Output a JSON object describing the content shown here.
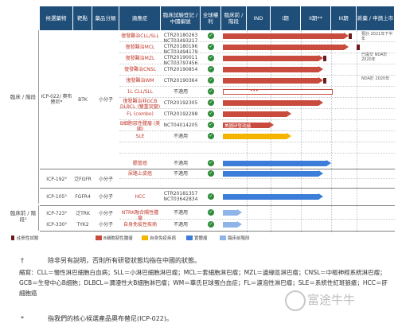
{
  "header": {
    "col_candidate": "候選藥物",
    "col_target": "靶點",
    "col_drug_class": "藥品分類",
    "col_indication": "適應症",
    "col_trial_no": "臨床試驗登記 / 中國編號",
    "col_global_rights": "全球權利",
    "col_preclinical": "臨床前 / 階段",
    "col_ind": "IND",
    "col_phase1": "I期",
    "col_phase2": "II期**",
    "col_phase3": "III期",
    "col_nda": "新藥 / 申請上市"
  },
  "groups": [
    {
      "label": "臨床 / 階段",
      "id": "clinical"
    },
    {
      "label": "臨床前 / 階段²",
      "id": "preclinical"
    }
  ],
  "drugs": [
    {
      "name": "ICP-022/ 奧布替尼*",
      "target": "BTK",
      "class": "小分子"
    },
    {
      "name": "ICP-192³",
      "target": "泛FGFR",
      "class": "小分子"
    },
    {
      "name": "ICP-105³",
      "target": "FGFR4",
      "class": "小分子"
    },
    {
      "name": "ICP-723³",
      "target": "泛TRK",
      "class": "小分子"
    },
    {
      "name": "ICP-330³",
      "target": "TYK2",
      "class": "小分子"
    }
  ],
  "rows": [
    {
      "indication": "復發難治CLL/SLL",
      "trial": "CTR20180263 NCT03493217",
      "check": true
    },
    {
      "indication": "復發難治MCL",
      "trial": "CTR20180196 NCT03494179",
      "check": true
    },
    {
      "indication": "復發難治MZL",
      "trial": "CTR20190011 NCT03797456",
      "check": true
    },
    {
      "indication": "復發難治CNSL",
      "trial": "CTR20190854",
      "check": true
    },
    {
      "indication": "復發難治WM",
      "trial": "CTR20190364",
      "check": true
    },
    {
      "indication": "1L CLL/SLL",
      "trial": "不適用",
      "check": true
    },
    {
      "indication": "復發難治非GCB DLBCL (雙重突變)",
      "trial": "CTR20192305",
      "check": true
    },
    {
      "indication": "FL (combo)",
      "trial": "CTR20192298",
      "check": true
    },
    {
      "indication": "B細胞惡性腫瘤 (美國)",
      "trial": "NCT04014205",
      "check": true
    },
    {
      "indication": "SLE",
      "trial": "不適用",
      "check": true
    },
    {
      "indication": "膽管癌",
      "trial": "不適用",
      "check": true
    },
    {
      "indication": "尿路上皮癌",
      "trial": "不適用",
      "check": true
    },
    {
      "indication": "HCC",
      "trial": "CTR20181357 NCT03642834",
      "check": true
    },
    {
      "indication": "NTRK融合陽性腫瘤",
      "trial": "不適用",
      "check": true
    },
    {
      "indication": "自身免疫性疾病",
      "trial": "不適用",
      "check": true
    }
  ],
  "bar_labels": {
    "us_trial": "美國研發就緒",
    "dots": "•••"
  },
  "legend": [
    {
      "label": "註冊性試驗",
      "color": "#6d1b1b"
    },
    {
      "label": "B細胞惡性腫瘤",
      "color": "#c94b3d"
    },
    {
      "label": "自身免疫疾病",
      "color": "#f4b400"
    },
    {
      "label": "實體瘤",
      "color": "#3b7dd8"
    },
    {
      "label": "臨床前階段",
      "color": "#8fb4e8"
    }
  ],
  "nda_notes": {
    "n1": "預計 2021年下半年",
    "n2": "已提交 NDA於 2020年",
    "n3": "NDA於 2020年"
  },
  "footnotes": {
    "dagger_mark": "†",
    "dagger_text": "除非另有說明，否則所有研發狀態均指在中國的狀態。",
    "abbrev": "縮寫：CLL＝慢性淋巴細胞白血病；SLL＝小淋巴細胞淋巴瘤；MCL＝套細胞淋巴瘤；MZL＝邊緣區淋巴瘤；CNSL＝中樞神經系統淋巴瘤；GCB＝生發中心B細胞；DLBCL＝瀰漫性大B細胞淋巴瘤；WM＝華氏巨球蛋白血症；FL＝濾泡性淋巴瘤；SLE＝系統性紅斑狼瘡；HCC＝肝細胞癌",
    "star_mark": "*",
    "star_text": "指我們的核心候選產品奧布替尼(ICP-022)。"
  },
  "watermark": "富途牛牛"
}
